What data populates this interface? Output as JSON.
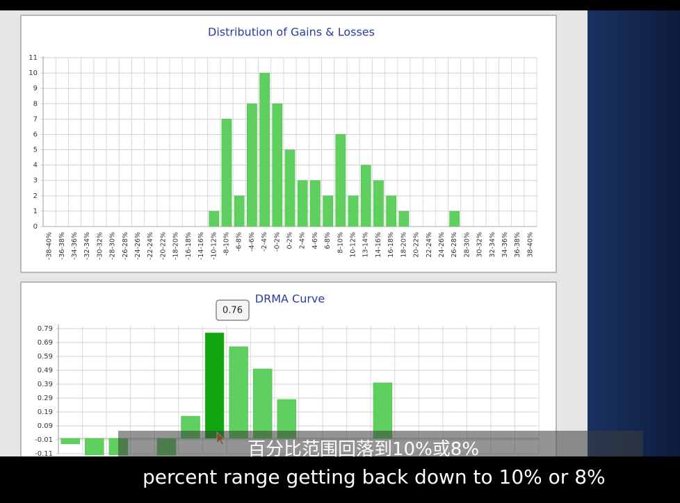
{
  "chart_data": [
    {
      "type": "bar",
      "title": "Distribution of Gains & Losses",
      "categories": [
        "-38-40%",
        "-36-38%",
        "-34-36%",
        "-32-34%",
        "-30-32%",
        "-28-30%",
        "-26-28%",
        "-24-26%",
        "-22-24%",
        "-20-22%",
        "-18-20%",
        "-16-18%",
        "-14-16%",
        "-10-12%",
        "-8-10%",
        "-6-8%",
        "-4-6%",
        "-2-4%",
        "-0-2%",
        "0-2%",
        "2-4%",
        "4-6%",
        "6-8%",
        "8-10%",
        "10-12%",
        "13-14%",
        "14-16%",
        "16-18%",
        "18-20%",
        "20-22%",
        "22-24%",
        "24-26%",
        "26-28%",
        "28-30%",
        "30-32%",
        "32-34%",
        "34-36%",
        "36-38%",
        "38-40%"
      ],
      "values": [
        0,
        0,
        0,
        0,
        0,
        0,
        0,
        0,
        0,
        0,
        0,
        0,
        0,
        1,
        7,
        2,
        8,
        10,
        8,
        5,
        3,
        3,
        2,
        6,
        2,
        4,
        3,
        2,
        1,
        0,
        0,
        0,
        1,
        0,
        0,
        0,
        0,
        0,
        0
      ],
      "color": "#5fcf5f",
      "ylim": [
        0,
        11
      ],
      "yticks": [
        0,
        1,
        2,
        3,
        4,
        5,
        6,
        7,
        8,
        9,
        10,
        11
      ],
      "grid": true
    },
    {
      "type": "bar",
      "title": "DRMA Curve",
      "categories": [
        null,
        null,
        null,
        null,
        null,
        null,
        null,
        null,
        null,
        null,
        null,
        null,
        null,
        null,
        null,
        null,
        null,
        null,
        null,
        null
      ],
      "values": [
        -0.04,
        -0.12,
        -0.12,
        0,
        -0.12,
        0.16,
        0.76,
        0.66,
        0.5,
        0.28,
        0,
        0,
        0,
        0.4,
        0,
        0,
        0,
        0,
        0,
        0
      ],
      "colors": [
        "#5fcf5f",
        "#5fcf5f",
        "#5fcf5f",
        "#5fcf5f",
        "#5fcf5f",
        "#5fcf5f",
        "#0fa60f",
        "#5fcf5f",
        "#5fcf5f",
        "#5fcf5f",
        "#5fcf5f",
        "#5fcf5f",
        "#5fcf5f",
        "#5fcf5f",
        "#5fcf5f",
        "#5fcf5f",
        "#5fcf5f",
        "#5fcf5f",
        "#5fcf5f",
        "#5fcf5f"
      ],
      "ylim": [
        -0.11,
        0.81
      ],
      "yticks": [
        -0.11,
        -0.01,
        0.09,
        0.19,
        0.29,
        0.39,
        0.49,
        0.59,
        0.69,
        0.79
      ],
      "grid": true
    }
  ],
  "subtitles": {
    "chinese": "百分比范围回落到10%或8%",
    "english": "percent range getting back down to 10% or 8%"
  }
}
